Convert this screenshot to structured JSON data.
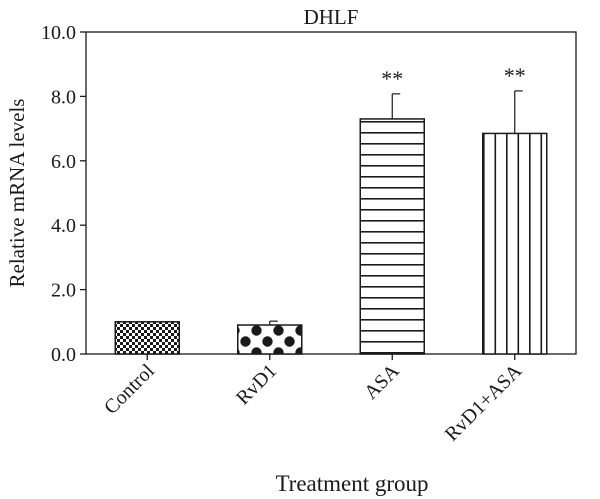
{
  "chart_data": {
    "type": "bar",
    "title": "DHLF",
    "xlabel": "Treatment group",
    "ylabel": "Relative mRNA levels",
    "ylim": [
      0,
      10
    ],
    "yticks": [
      "0.0",
      "2.0",
      "4.0",
      "6.0",
      "8.0",
      "10.0"
    ],
    "grid": false,
    "legend": "none",
    "categories": [
      "Control",
      "RvD1",
      "ASA",
      "RvD1+ASA"
    ],
    "values": [
      1.0,
      0.9,
      7.3,
      6.85
    ],
    "error": [
      0.0,
      0.12,
      0.78,
      1.32
    ],
    "annotations": [
      "",
      "",
      "**",
      "**"
    ],
    "patterns": [
      "fine-checker",
      "coarse-checker",
      "horizontal-lines",
      "vertical-lines"
    ],
    "colors": {
      "ink": "#1a1a1a",
      "background": "#ffffff"
    }
  }
}
